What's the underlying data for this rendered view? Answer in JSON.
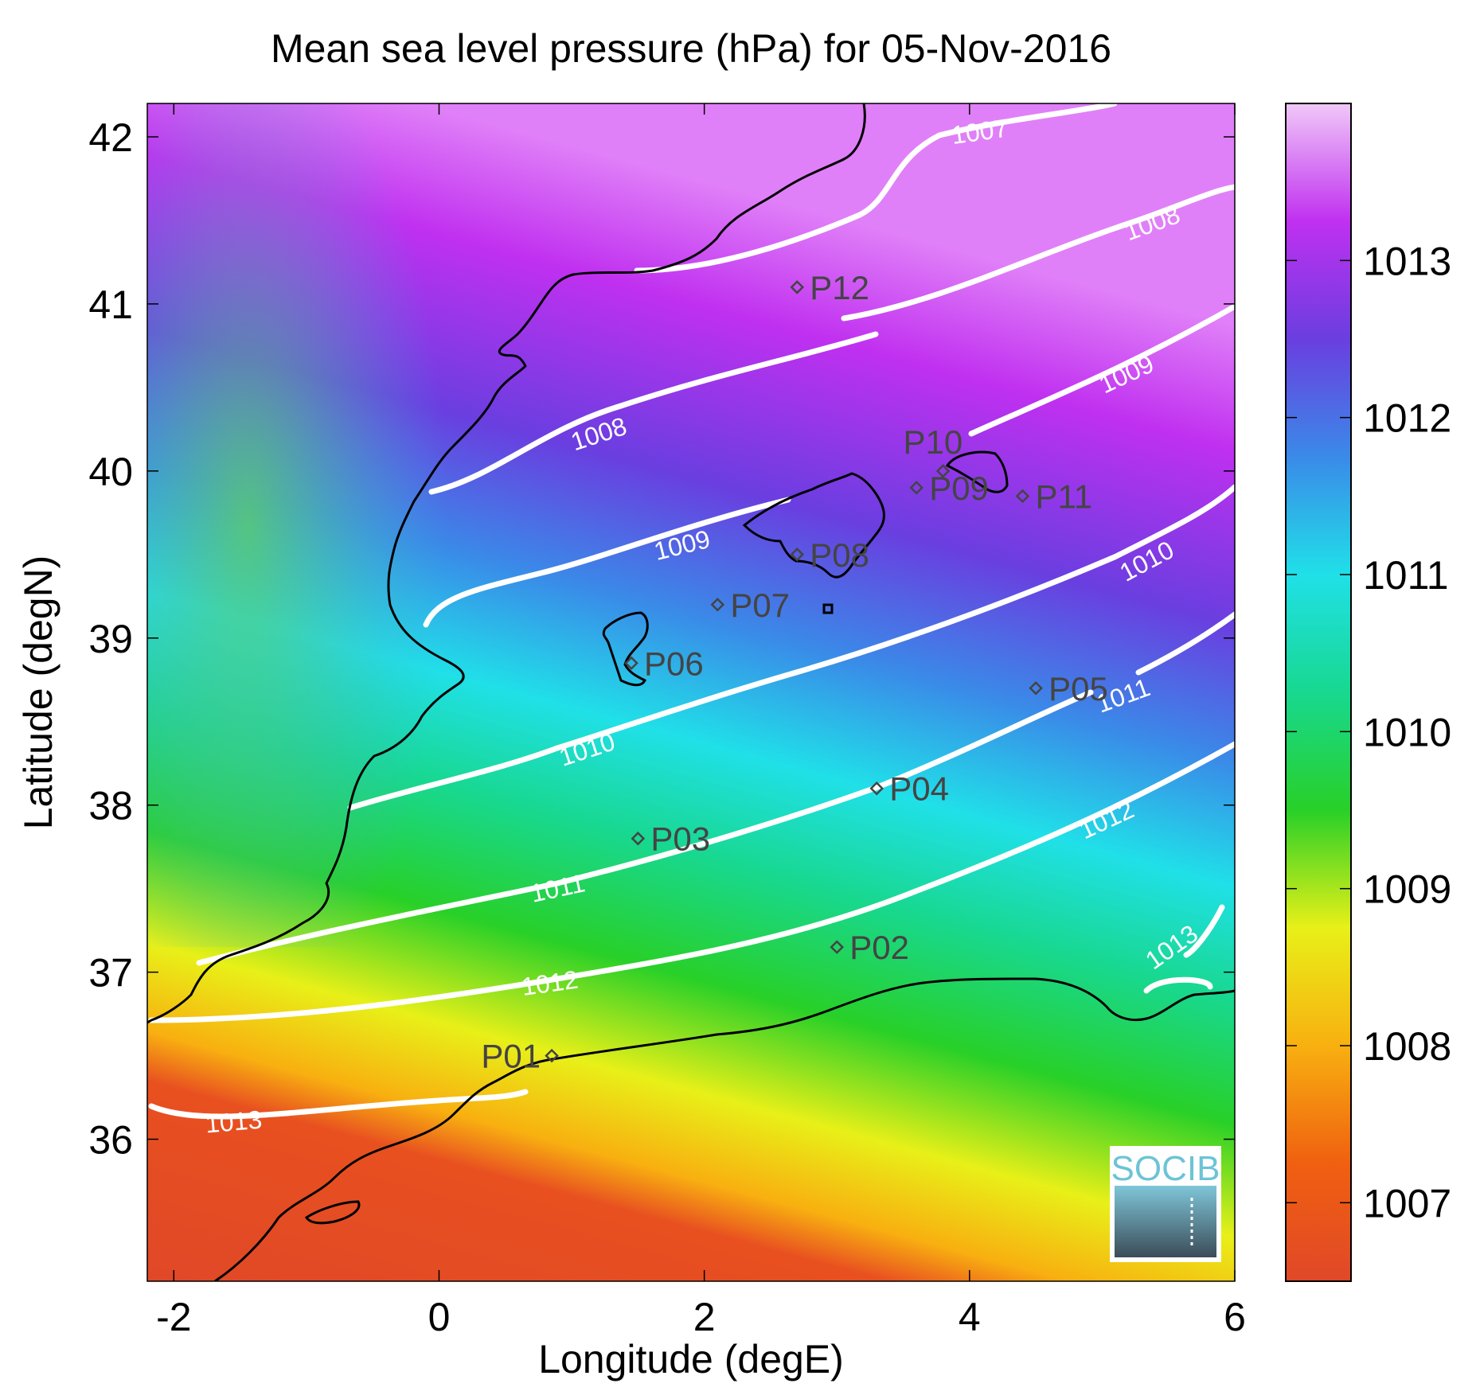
{
  "title": "Mean sea level pressure (hPa) for 05-Nov-2016",
  "xlabel": "Longitude (degE)",
  "ylabel": "Latitude (degN)",
  "x_ticks": [
    "-2",
    "0",
    "2",
    "4",
    "6"
  ],
  "y_ticks": [
    "36",
    "37",
    "38",
    "39",
    "40",
    "41",
    "42"
  ],
  "colorbar": {
    "ticks": [
      "1007",
      "1008",
      "1009",
      "1010",
      "1011",
      "1012",
      "1013"
    ],
    "range": [
      1006.5,
      1014.0
    ],
    "colormap": [
      "#f0c8f8",
      "#c030f0",
      "#6a3ee0",
      "#3a8ae8",
      "#20e0e8",
      "#18d890",
      "#28d028",
      "#e8f018",
      "#f8b010",
      "#f06010",
      "#e04828"
    ]
  },
  "stations": [
    {
      "id": "P01"
    },
    {
      "id": "P02"
    },
    {
      "id": "P03"
    },
    {
      "id": "P04"
    },
    {
      "id": "P05"
    },
    {
      "id": "P06"
    },
    {
      "id": "P07"
    },
    {
      "id": "P08"
    },
    {
      "id": "P09"
    },
    {
      "id": "P10"
    },
    {
      "id": "P11"
    },
    {
      "id": "P12"
    }
  ],
  "contours": [
    "1007",
    "1008",
    "1008",
    "1009",
    "1009",
    "1010",
    "1010",
    "1011",
    "1011",
    "1011",
    "1012",
    "1012",
    "1013",
    "1013"
  ],
  "logo": {
    "text": "SOCIB"
  },
  "chart_data": {
    "type": "heatmap",
    "title": "Mean sea level pressure (hPa) for 05-Nov-2016",
    "xlabel": "Longitude (degE)",
    "ylabel": "Latitude (degN)",
    "xlim": [
      -2.2,
      6.0
    ],
    "ylim": [
      35.15,
      42.2
    ],
    "colorbar_range": [
      1006.5,
      1014.0
    ],
    "contour_levels": [
      1007,
      1008,
      1009,
      1010,
      1011,
      1012,
      1013
    ],
    "stations": [
      {
        "id": "P01",
        "lon": 0.85,
        "lat": 36.5
      },
      {
        "id": "P02",
        "lon": 3.0,
        "lat": 37.15
      },
      {
        "id": "P03",
        "lon": 1.5,
        "lat": 37.8
      },
      {
        "id": "P04",
        "lon": 3.3,
        "lat": 38.1
      },
      {
        "id": "P05",
        "lon": 4.5,
        "lat": 38.7
      },
      {
        "id": "P06",
        "lon": 1.45,
        "lat": 38.85
      },
      {
        "id": "P07",
        "lon": 2.1,
        "lat": 39.2
      },
      {
        "id": "P08",
        "lon": 2.7,
        "lat": 39.5
      },
      {
        "id": "P09",
        "lon": 3.6,
        "lat": 39.9
      },
      {
        "id": "P10",
        "lon": 3.8,
        "lat": 40.0
      },
      {
        "id": "P11",
        "lon": 4.4,
        "lat": 39.85
      },
      {
        "id": "P12",
        "lon": 2.7,
        "lat": 41.1
      }
    ]
  }
}
